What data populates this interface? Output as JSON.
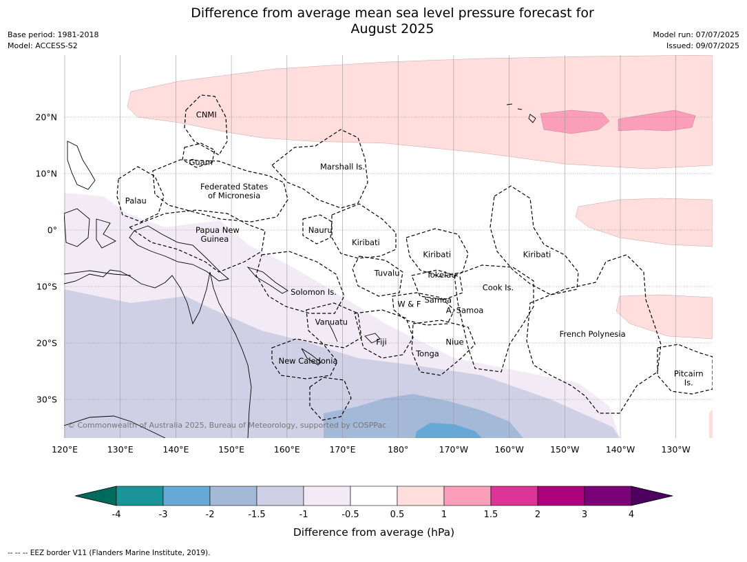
{
  "title": {
    "line1": "Difference from average mean sea level pressure forecast for",
    "line2": "August 2025"
  },
  "meta": {
    "base_period": "Base period: 1981-2018",
    "model": "Model: ACCESS-S2",
    "model_run": "Model run: 07/07/2025",
    "issued": "Issued: 09/07/2025"
  },
  "axes": {
    "lon_ticks": [
      {
        "lon": 120,
        "label": "120°E"
      },
      {
        "lon": 130,
        "label": "130°E"
      },
      {
        "lon": 140,
        "label": "140°E"
      },
      {
        "lon": 150,
        "label": "150°E"
      },
      {
        "lon": 160,
        "label": "160°E"
      },
      {
        "lon": 170,
        "label": "170°E"
      },
      {
        "lon": 180,
        "label": "180°"
      },
      {
        "lon": 190,
        "label": "170°W"
      },
      {
        "lon": 200,
        "label": "160°W"
      },
      {
        "lon": 210,
        "label": "150°W"
      },
      {
        "lon": 220,
        "label": "140°W"
      },
      {
        "lon": 230,
        "label": "130°W"
      }
    ],
    "lat_ticks": [
      {
        "lat": 20,
        "label": "20°N"
      },
      {
        "lat": 10,
        "label": "10°N"
      },
      {
        "lat": 0,
        "label": "0°"
      },
      {
        "lat": -10,
        "label": "10°S"
      },
      {
        "lat": -20,
        "label": "20°S"
      },
      {
        "lat": -30,
        "label": "30°S"
      }
    ]
  },
  "regions": [
    {
      "name": "CNMI",
      "lon": 145.5,
      "lat": 20.4
    },
    {
      "name": "Guam",
      "lon": 144.5,
      "lat": 12.0
    },
    {
      "name": "Marshall Is.",
      "lon": 170.0,
      "lat": 11.2
    },
    {
      "name": "Federated States",
      "lon": 150.5,
      "lat": 7.7
    },
    {
      "name": "of Micronesia",
      "lon": 150.5,
      "lat": 6.1
    },
    {
      "name": "Palau",
      "lon": 132.8,
      "lat": 5.2
    },
    {
      "name": "Papua New",
      "lon": 147.5,
      "lat": 0.0
    },
    {
      "name": "Guinea",
      "lon": 147.0,
      "lat": -1.6
    },
    {
      "name": "Nauru",
      "lon": 166.0,
      "lat": 0.0
    },
    {
      "name": "Kiribati",
      "lon": 174.2,
      "lat": -2.2
    },
    {
      "name": "Kiribati",
      "lon": 187.0,
      "lat": -4.3
    },
    {
      "name": "Kiribati",
      "lon": 205.0,
      "lat": -4.3
    },
    {
      "name": "Tuvalu",
      "lon": 178.0,
      "lat": -7.6
    },
    {
      "name": "Tokelau",
      "lon": 187.8,
      "lat": -7.9
    },
    {
      "name": "Cook Is.",
      "lon": 198.0,
      "lat": -10.2
    },
    {
      "name": "Solomon Is.",
      "lon": 164.8,
      "lat": -11.0
    },
    {
      "name": "Samoa",
      "lon": 187.2,
      "lat": -12.4
    },
    {
      "name": "W & F",
      "lon": 182.0,
      "lat": -13.1
    },
    {
      "name": "A. Samoa",
      "lon": 192.0,
      "lat": -14.2
    },
    {
      "name": "Vanuatu",
      "lon": 168.0,
      "lat": -16.3
    },
    {
      "name": "Fiji",
      "lon": 177.0,
      "lat": -19.8
    },
    {
      "name": "Niue",
      "lon": 190.2,
      "lat": -19.8
    },
    {
      "name": "French Polynesia",
      "lon": 215.0,
      "lat": -18.4
    },
    {
      "name": "Tonga",
      "lon": 185.3,
      "lat": -21.9
    },
    {
      "name": "New Caledonia",
      "lon": 163.8,
      "lat": -23.2
    },
    {
      "name": "Pitcairn",
      "lon": 232.3,
      "lat": -25.4
    },
    {
      "name": "Is.",
      "lon": 232.3,
      "lat": -27.0
    }
  ],
  "copyright": "© Commonwealth of Australia 2025, Bureau of Meteorology, supported by COSPPac",
  "colorbar": {
    "title": "Difference from average (hPa)",
    "ticks": [
      "-4",
      "-3",
      "-2",
      "-1.5",
      "-1",
      "-0.5",
      "0.5",
      "1",
      "1.5",
      "2",
      "3",
      "4"
    ],
    "under_color": "#006b5c",
    "over_color": "#4b0060",
    "colors": [
      "#1a9399",
      "#67a9d6",
      "#a4b8d8",
      "#cfd0e6",
      "#f2eaf5",
      "#ffffff",
      "#ffdedd",
      "#fa9eb9",
      "#dc3497",
      "#ad017e",
      "#7a0177"
    ]
  },
  "footnote": "-- -- -- EEZ border V11 (Flanders Marine Institute, 2019)."
}
